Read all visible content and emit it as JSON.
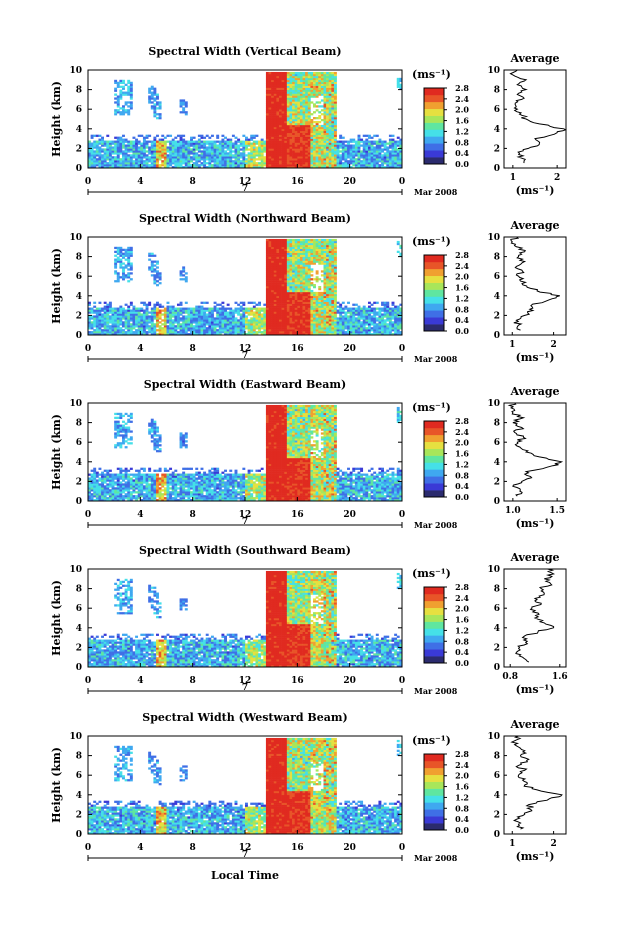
{
  "colors": {
    "scale": [
      "#2b2b6e",
      "#3a3ad6",
      "#3f6fe6",
      "#3fa8f0",
      "#45e0e8",
      "#5fe6a0",
      "#a8e65a",
      "#e6e040",
      "#f0a030",
      "#e85528",
      "#e02a20"
    ],
    "profile_line": "#000000"
  },
  "figure": {
    "xlabel": "Local Time",
    "date_label": "Mar 2008",
    "day_label": "7",
    "ylabel": "Height (km)",
    "xticks": [
      "0",
      "4",
      "8",
      "12",
      "16",
      "20",
      "0"
    ],
    "yticks": [
      "0",
      "2",
      "4",
      "6",
      "8",
      "10"
    ],
    "unit_label": "(ms⁻¹)",
    "colorbar_ticks": [
      "0.0",
      "0.4",
      "0.8",
      "1.2",
      "1.6",
      "2.0",
      "2.4",
      "2.8"
    ],
    "profile_title": "Average",
    "profile_xlabel": "(ms⁻¹)"
  },
  "chart_data": [
    {
      "type": "heatmap",
      "title": "Spectral Width (Vertical Beam)",
      "xlim": [
        0,
        24
      ],
      "ylim": [
        0,
        10
      ],
      "clim": [
        0,
        2.8
      ],
      "profile": {
        "title": "Average",
        "xlim": [
          0.8,
          2.2
        ],
        "xticks": [
          "1",
          "2"
        ],
        "xtick_values": [
          1,
          2
        ],
        "points": [
          [
            1.25,
            0.5
          ],
          [
            1.2,
            1.0
          ],
          [
            1.15,
            1.5
          ],
          [
            1.35,
            2.0
          ],
          [
            1.6,
            2.5
          ],
          [
            1.5,
            3.0
          ],
          [
            2.0,
            3.6
          ],
          [
            2.15,
            4.0
          ],
          [
            1.6,
            4.5
          ],
          [
            1.3,
            5.0
          ],
          [
            1.15,
            5.5
          ],
          [
            1.1,
            6.0
          ],
          [
            1.05,
            6.5
          ],
          [
            1.2,
            7.0
          ],
          [
            1.1,
            7.5
          ],
          [
            1.3,
            8.0
          ],
          [
            1.1,
            8.5
          ],
          [
            1.3,
            9.0
          ],
          [
            1.0,
            9.5
          ],
          [
            1.1,
            10.0
          ]
        ]
      }
    },
    {
      "type": "heatmap",
      "title": "Spectral Width (Northward Beam)",
      "xlim": [
        0,
        24
      ],
      "ylim": [
        0,
        10
      ],
      "clim": [
        0,
        2.8
      ],
      "profile": {
        "title": "Average",
        "xlim": [
          0.8,
          2.3
        ],
        "xticks": [
          "1",
          "2"
        ],
        "xtick_values": [
          1,
          2
        ],
        "points": [
          [
            1.2,
            0.5
          ],
          [
            1.15,
            1.0
          ],
          [
            1.1,
            1.5
          ],
          [
            1.3,
            2.0
          ],
          [
            1.5,
            2.5
          ],
          [
            1.45,
            3.0
          ],
          [
            1.9,
            3.6
          ],
          [
            2.15,
            4.0
          ],
          [
            1.6,
            4.5
          ],
          [
            1.35,
            5.0
          ],
          [
            1.2,
            5.5
          ],
          [
            1.15,
            6.0
          ],
          [
            1.25,
            6.5
          ],
          [
            1.1,
            7.0
          ],
          [
            1.3,
            7.5
          ],
          [
            1.15,
            8.0
          ],
          [
            1.3,
            8.5
          ],
          [
            1.1,
            9.0
          ],
          [
            1.0,
            9.5
          ],
          [
            1.1,
            10.0
          ]
        ]
      }
    },
    {
      "type": "heatmap",
      "title": "Spectral Width (Eastward Beam)",
      "xlim": [
        0,
        24
      ],
      "ylim": [
        0,
        10
      ],
      "clim": [
        0,
        2.8
      ],
      "profile": {
        "title": "Average",
        "xlim": [
          0.9,
          1.6
        ],
        "xticks": [
          "1.0",
          "1.5"
        ],
        "xtick_values": [
          1.0,
          1.5
        ],
        "points": [
          [
            1.05,
            0.5
          ],
          [
            1.08,
            1.0
          ],
          [
            1.0,
            1.5
          ],
          [
            1.1,
            2.0
          ],
          [
            1.2,
            2.5
          ],
          [
            1.15,
            3.0
          ],
          [
            1.45,
            3.6
          ],
          [
            1.55,
            4.0
          ],
          [
            1.3,
            4.5
          ],
          [
            1.15,
            5.0
          ],
          [
            1.08,
            5.5
          ],
          [
            1.05,
            6.0
          ],
          [
            1.12,
            6.5
          ],
          [
            1.02,
            7.0
          ],
          [
            1.1,
            7.5
          ],
          [
            1.0,
            8.0
          ],
          [
            1.12,
            8.5
          ],
          [
            1.0,
            9.0
          ],
          [
            0.98,
            9.5
          ],
          [
            1.02,
            10.0
          ]
        ]
      }
    },
    {
      "type": "heatmap",
      "title": "Spectral Width (Southward Beam)",
      "xlim": [
        0,
        24
      ],
      "ylim": [
        0,
        10
      ],
      "clim": [
        0,
        2.8
      ],
      "profile": {
        "title": "Average",
        "xlim": [
          0.7,
          1.7
        ],
        "xticks": [
          "0.8",
          "1.6"
        ],
        "xtick_values": [
          0.8,
          1.6
        ],
        "points": [
          [
            1.1,
            0.5
          ],
          [
            1.0,
            1.0
          ],
          [
            0.9,
            1.5
          ],
          [
            0.95,
            2.0
          ],
          [
            1.05,
            2.5
          ],
          [
            1.0,
            3.0
          ],
          [
            1.25,
            3.6
          ],
          [
            1.5,
            4.0
          ],
          [
            1.35,
            4.5
          ],
          [
            1.2,
            5.0
          ],
          [
            1.25,
            5.5
          ],
          [
            1.15,
            6.0
          ],
          [
            1.3,
            6.5
          ],
          [
            1.2,
            7.0
          ],
          [
            1.35,
            7.5
          ],
          [
            1.3,
            8.0
          ],
          [
            1.45,
            8.5
          ],
          [
            1.35,
            9.0
          ],
          [
            1.5,
            9.5
          ],
          [
            1.4,
            10.0
          ]
        ]
      }
    },
    {
      "type": "heatmap",
      "title": "Spectral Width (Westward Beam)",
      "xlim": [
        0,
        24
      ],
      "ylim": [
        0,
        10
      ],
      "clim": [
        0,
        2.8
      ],
      "profile": {
        "title": "Average",
        "xlim": [
          0.8,
          2.3
        ],
        "xticks": [
          "1",
          "2"
        ],
        "xtick_values": [
          1,
          2
        ],
        "points": [
          [
            1.2,
            0.5
          ],
          [
            1.15,
            1.0
          ],
          [
            1.1,
            1.5
          ],
          [
            1.3,
            2.0
          ],
          [
            1.45,
            2.5
          ],
          [
            1.4,
            3.0
          ],
          [
            1.9,
            3.6
          ],
          [
            2.2,
            4.0
          ],
          [
            1.6,
            4.5
          ],
          [
            1.3,
            5.0
          ],
          [
            1.25,
            5.5
          ],
          [
            1.15,
            6.0
          ],
          [
            1.3,
            6.5
          ],
          [
            1.15,
            7.0
          ],
          [
            1.35,
            7.5
          ],
          [
            1.2,
            8.0
          ],
          [
            1.3,
            8.5
          ],
          [
            1.1,
            9.0
          ],
          [
            1.05,
            9.5
          ],
          [
            1.15,
            10.0
          ]
        ]
      }
    }
  ]
}
